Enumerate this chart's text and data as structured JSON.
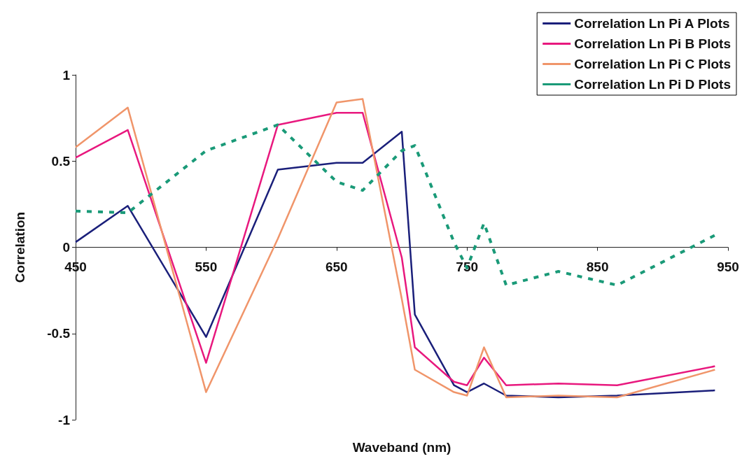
{
  "chart_data": {
    "type": "line",
    "xlabel": "Waveband (nm)",
    "ylabel": "Correlation",
    "x": [
      450,
      490,
      550,
      605,
      650,
      670,
      700,
      710,
      740,
      750,
      763,
      780,
      820,
      865,
      940
    ],
    "series": [
      {
        "name": "Correlation Ln Pi A Plots",
        "color": "#1a1f7a",
        "values": [
          0.03,
          0.24,
          -0.52,
          0.45,
          0.49,
          0.49,
          0.67,
          -0.39,
          -0.8,
          -0.84,
          -0.79,
          -0.86,
          -0.87,
          -0.86,
          -0.83
        ]
      },
      {
        "name": "Correlation Ln Pi B Plots",
        "color": "#e8187e",
        "values": [
          0.52,
          0.68,
          -0.67,
          0.71,
          0.78,
          0.78,
          -0.06,
          -0.58,
          -0.78,
          -0.8,
          -0.64,
          -0.8,
          -0.79,
          -0.8,
          -0.69
        ]
      },
      {
        "name": "Correlation Ln Pi C Plots",
        "color": "#f0956a",
        "values": [
          0.58,
          0.81,
          -0.84,
          0.05,
          0.84,
          0.86,
          -0.3,
          -0.71,
          -0.84,
          -0.86,
          -0.58,
          -0.87,
          -0.86,
          -0.87,
          -0.71
        ]
      },
      {
        "name": "Correlation Ln Pi D Plots",
        "color": "#1a9a78",
        "line_style": "dashed",
        "values": [
          0.21,
          0.2,
          0.56,
          0.71,
          0.38,
          0.33,
          0.56,
          0.59,
          0.03,
          -0.12,
          0.14,
          -0.22,
          -0.14,
          -0.22,
          0.07
        ]
      }
    ],
    "xlim": [
      450,
      950
    ],
    "xticks": [
      450,
      550,
      650,
      750,
      850,
      950
    ],
    "ylim": [
      -1,
      1
    ],
    "yticks": [
      -1,
      -0.5,
      0,
      0.5,
      1
    ],
    "grid": false,
    "legend": "top right",
    "marker": "none",
    "line_style": "solid"
  }
}
